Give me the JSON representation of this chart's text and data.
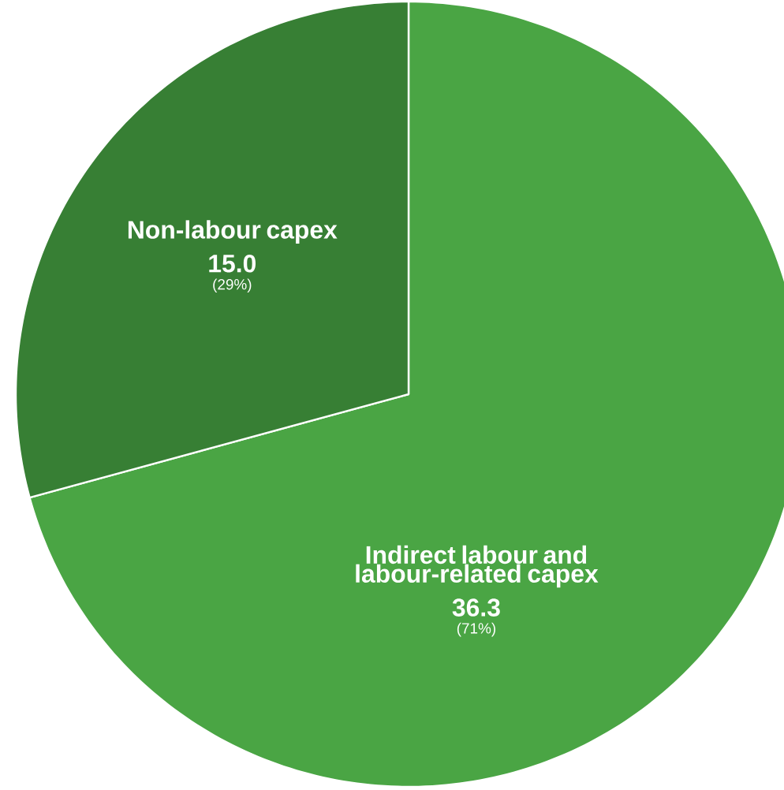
{
  "chart_data": {
    "type": "pie",
    "categories": [
      "Indirect labour and labour-related capex",
      "Non-labour capex"
    ],
    "values": [
      36.3,
      15.0
    ],
    "value_labels": [
      "36.3",
      "15.0"
    ],
    "colors": [
      "#4aa544",
      "#377f34"
    ],
    "annotations": [
      "(71%)",
      "(29%)"
    ]
  }
}
